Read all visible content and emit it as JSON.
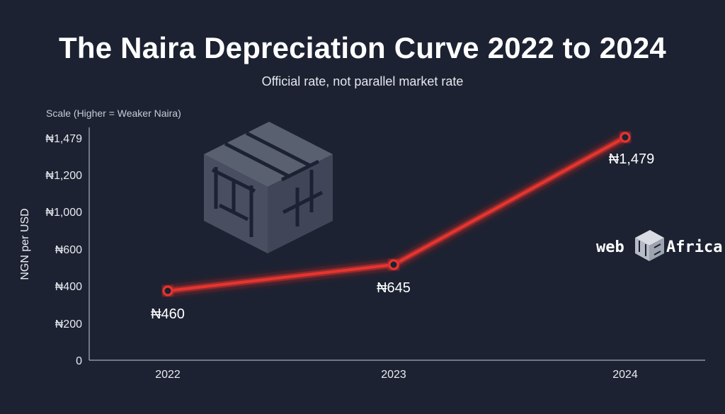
{
  "chart_data": {
    "type": "line",
    "title": "The Naira Depreciation Curve 2022 to 2024",
    "subtitle": "Official rate, not parallel market rate",
    "scale_note": "Scale (Higher = Weaker Naira)",
    "ylabel": "NGN per USD",
    "xlabel": "",
    "categories": [
      "2022",
      "2023",
      "2024"
    ],
    "values": [
      460,
      645,
      1479
    ],
    "data_labels": [
      "₦460",
      "₦645",
      "₦1,479"
    ],
    "y_ticks": [
      {
        "label": "0",
        "value": 0
      },
      {
        "label": "₦200",
        "value": 200
      },
      {
        "label": "₦400",
        "value": 400
      },
      {
        "label": "₦600",
        "value": 600
      },
      {
        "label": "₦1,000",
        "value": 1000
      },
      {
        "label": "₦1,200",
        "value": 1200
      },
      {
        "label": "₦1,479",
        "value": 1479
      }
    ],
    "grid": false,
    "line_color": "#e8342f",
    "background_color": "#1c2232"
  },
  "brand": {
    "watermark_icon": "cube-maze-logo-icon",
    "logo_text": "web Africa",
    "logo_icon": "cube-maze-logo-icon"
  }
}
